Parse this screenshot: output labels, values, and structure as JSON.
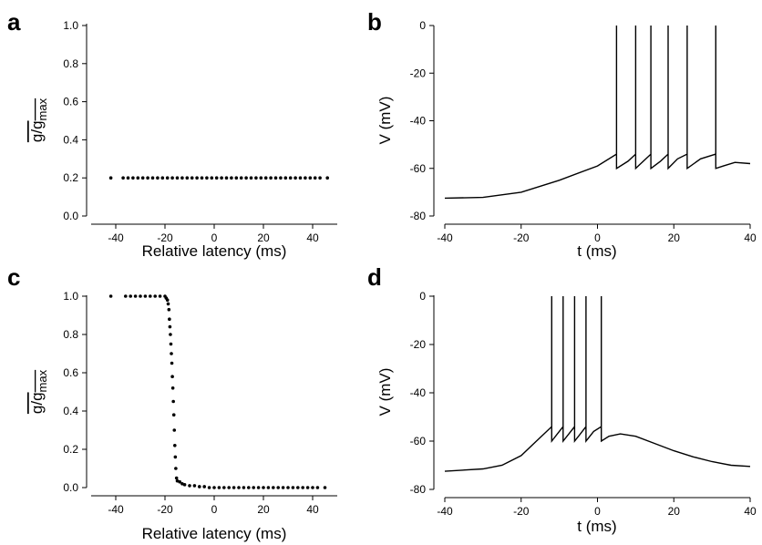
{
  "chart_data": [
    {
      "panel": "a",
      "type": "scatter",
      "xlabel": "Relative latency (ms)",
      "ylabel_main": "g/g",
      "ylabel_sub": "max",
      "xlim": [
        -50,
        50
      ],
      "ylim": [
        0,
        1
      ],
      "xticks": [
        -40,
        -20,
        0,
        20,
        40
      ],
      "yticks": [
        0.0,
        0.2,
        0.4,
        0.6,
        0.8,
        1.0
      ],
      "ytick_labels": [
        "0.0",
        "0.2",
        "0.4",
        "0.6",
        "0.8",
        "1.0"
      ],
      "points": [
        [
          -42,
          0.2
        ],
        [
          -37,
          0.2
        ],
        [
          -35,
          0.2
        ],
        [
          -33,
          0.2
        ],
        [
          -31,
          0.2
        ],
        [
          -29,
          0.2
        ],
        [
          -27,
          0.2
        ],
        [
          -25,
          0.2
        ],
        [
          -23,
          0.2
        ],
        [
          -21,
          0.2
        ],
        [
          -19,
          0.2
        ],
        [
          -17,
          0.2
        ],
        [
          -15,
          0.2
        ],
        [
          -13,
          0.2
        ],
        [
          -11,
          0.2
        ],
        [
          -9,
          0.2
        ],
        [
          -7,
          0.2
        ],
        [
          -5,
          0.2
        ],
        [
          -3,
          0.2
        ],
        [
          -1,
          0.2
        ],
        [
          1,
          0.2
        ],
        [
          3,
          0.2
        ],
        [
          5,
          0.2
        ],
        [
          7,
          0.2
        ],
        [
          9,
          0.2
        ],
        [
          11,
          0.2
        ],
        [
          13,
          0.2
        ],
        [
          15,
          0.2
        ],
        [
          17,
          0.2
        ],
        [
          19,
          0.2
        ],
        [
          21,
          0.2
        ],
        [
          23,
          0.2
        ],
        [
          25,
          0.2
        ],
        [
          27,
          0.2
        ],
        [
          29,
          0.2
        ],
        [
          31,
          0.2
        ],
        [
          33,
          0.2
        ],
        [
          35,
          0.2
        ],
        [
          37,
          0.2
        ],
        [
          39,
          0.2
        ],
        [
          41,
          0.2
        ],
        [
          43,
          0.2
        ],
        [
          46,
          0.2
        ]
      ]
    },
    {
      "panel": "b",
      "type": "line",
      "xlabel": "t (ms)",
      "ylabel": "V (mV)",
      "xlim": [
        -40,
        40
      ],
      "ylim": [
        -80,
        0
      ],
      "xticks": [
        -40,
        -20,
        0,
        20,
        40
      ],
      "yticks": [
        0,
        -20,
        -40,
        -60,
        -80
      ],
      "points": [
        [
          -40,
          -72.5
        ],
        [
          -30,
          -72.2
        ],
        [
          -20,
          -70
        ],
        [
          -10,
          -65
        ],
        [
          0,
          -59
        ],
        [
          5,
          -54
        ],
        [
          5,
          0
        ],
        [
          5,
          -60
        ],
        [
          8,
          -57
        ],
        [
          10,
          -54
        ],
        [
          10,
          0
        ],
        [
          10,
          -60
        ],
        [
          12,
          -57
        ],
        [
          14,
          -54
        ],
        [
          14,
          0
        ],
        [
          14,
          -60
        ],
        [
          16.5,
          -57
        ],
        [
          18.5,
          -54
        ],
        [
          18.5,
          0
        ],
        [
          18.5,
          -60
        ],
        [
          21,
          -56
        ],
        [
          23.5,
          -54
        ],
        [
          23.5,
          0
        ],
        [
          23.5,
          -60
        ],
        [
          27,
          -56
        ],
        [
          31,
          -54
        ],
        [
          31,
          0
        ],
        [
          31,
          -60
        ],
        [
          33,
          -59
        ],
        [
          36,
          -57.5
        ],
        [
          40,
          -58
        ]
      ]
    },
    {
      "panel": "c",
      "type": "scatter",
      "xlabel": "Relative latency (ms)",
      "ylabel_main": "g/g",
      "ylabel_sub": "max",
      "xlim": [
        -50,
        50
      ],
      "ylim": [
        0,
        1
      ],
      "xticks": [
        -40,
        -20,
        0,
        20,
        40
      ],
      "yticks": [
        0.0,
        0.2,
        0.4,
        0.6,
        0.8,
        1.0
      ],
      "ytick_labels": [
        "0.0",
        "0.2",
        "0.4",
        "0.6",
        "0.8",
        "1.0"
      ],
      "points": [
        [
          -42,
          1.0
        ],
        [
          -36,
          1.0
        ],
        [
          -34,
          1.0
        ],
        [
          -32,
          1.0
        ],
        [
          -30,
          1.0
        ],
        [
          -28,
          1.0
        ],
        [
          -26,
          1.0
        ],
        [
          -24,
          1.0
        ],
        [
          -22,
          1.0
        ],
        [
          -20,
          1.0
        ],
        [
          -19.5,
          0.99
        ],
        [
          -19,
          0.98
        ],
        [
          -18.7,
          0.96
        ],
        [
          -18.4,
          0.93
        ],
        [
          -18.2,
          0.88
        ],
        [
          -18,
          0.84
        ],
        [
          -17.8,
          0.8
        ],
        [
          -17.6,
          0.75
        ],
        [
          -17.4,
          0.7
        ],
        [
          -17.2,
          0.65
        ],
        [
          -17,
          0.58
        ],
        [
          -16.8,
          0.52
        ],
        [
          -16.6,
          0.45
        ],
        [
          -16.4,
          0.38
        ],
        [
          -16.2,
          0.3
        ],
        [
          -16,
          0.22
        ],
        [
          -15.8,
          0.16
        ],
        [
          -15.6,
          0.1
        ],
        [
          -15.3,
          0.05
        ],
        [
          -15,
          0.035
        ],
        [
          -14,
          0.03
        ],
        [
          -13,
          0.02
        ],
        [
          -12,
          0.015
        ],
        [
          -10,
          0.01
        ],
        [
          -8,
          0.01
        ],
        [
          -6,
          0.005
        ],
        [
          -4,
          0.005
        ],
        [
          -2,
          0.0
        ],
        [
          0,
          0.0
        ],
        [
          2,
          0.0
        ],
        [
          4,
          0.0
        ],
        [
          6,
          0.0
        ],
        [
          8,
          0.0
        ],
        [
          10,
          0.0
        ],
        [
          12,
          0.0
        ],
        [
          14,
          0.0
        ],
        [
          16,
          0.0
        ],
        [
          18,
          0.0
        ],
        [
          20,
          0.0
        ],
        [
          22,
          0.0
        ],
        [
          24,
          0.0
        ],
        [
          26,
          0.0
        ],
        [
          28,
          0.0
        ],
        [
          30,
          0.0
        ],
        [
          32,
          0.0
        ],
        [
          34,
          0.0
        ],
        [
          36,
          0.0
        ],
        [
          38,
          0.0
        ],
        [
          40,
          0.0
        ],
        [
          42,
          0.0
        ],
        [
          45,
          0.0
        ]
      ]
    },
    {
      "panel": "d",
      "type": "line",
      "xlabel": "t (ms)",
      "ylabel": "V (mV)",
      "xlim": [
        -40,
        40
      ],
      "ylim": [
        -80,
        0
      ],
      "xticks": [
        -40,
        -20,
        0,
        20,
        40
      ],
      "yticks": [
        0,
        -20,
        -40,
        -60,
        -80
      ],
      "points": [
        [
          -40,
          -72.5
        ],
        [
          -30,
          -71.5
        ],
        [
          -25,
          -70
        ],
        [
          -20,
          -66
        ],
        [
          -16,
          -60
        ],
        [
          -12,
          -54
        ],
        [
          -12,
          0
        ],
        [
          -12,
          -60
        ],
        [
          -10.5,
          -57
        ],
        [
          -9,
          -54
        ],
        [
          -9,
          0
        ],
        [
          -9,
          -60
        ],
        [
          -7.5,
          -57
        ],
        [
          -6,
          -54
        ],
        [
          -6,
          0
        ],
        [
          -6,
          -60
        ],
        [
          -4.5,
          -57
        ],
        [
          -3,
          -54
        ],
        [
          -3,
          0
        ],
        [
          -3,
          -60
        ],
        [
          -1,
          -56
        ],
        [
          1,
          -54
        ],
        [
          1,
          0
        ],
        [
          1,
          -60
        ],
        [
          3,
          -58
        ],
        [
          6,
          -57
        ],
        [
          10,
          -58
        ],
        [
          15,
          -61
        ],
        [
          20,
          -64
        ],
        [
          25,
          -66.5
        ],
        [
          30,
          -68.5
        ],
        [
          35,
          -70
        ],
        [
          40,
          -70.5
        ]
      ]
    }
  ],
  "panels": {
    "a": {
      "letter": "a"
    },
    "b": {
      "letter": "b"
    },
    "c": {
      "letter": "c"
    },
    "d": {
      "letter": "d"
    }
  }
}
